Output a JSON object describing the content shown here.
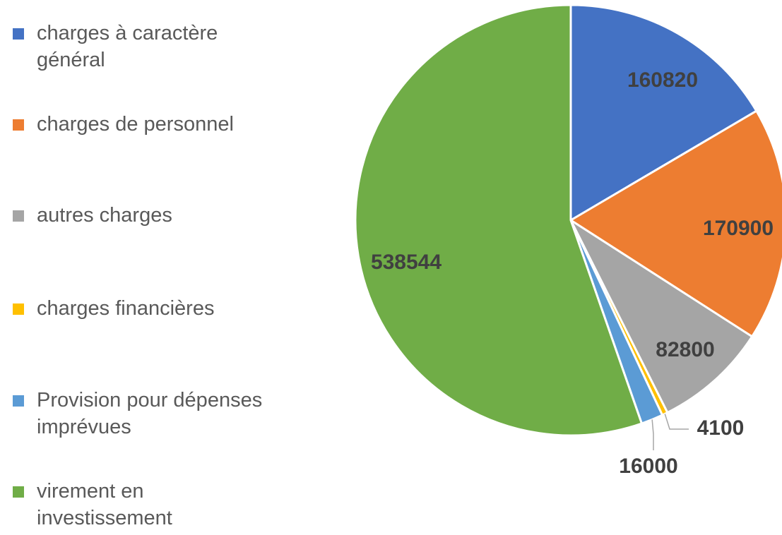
{
  "chart_data": {
    "type": "pie",
    "categories": [
      "charges à caractère général",
      "charges de personnel",
      "autres charges",
      "charges financières",
      "Provision pour dépenses imprévues",
      "virement en investissement"
    ],
    "values": [
      160820,
      170900,
      82800,
      4100,
      16000,
      538544
    ],
    "colors": [
      "#4472c4",
      "#ed7d31",
      "#a5a5a5",
      "#ffc000",
      "#5b9bd5",
      "#70ad47"
    ],
    "legend": "left"
  }
}
